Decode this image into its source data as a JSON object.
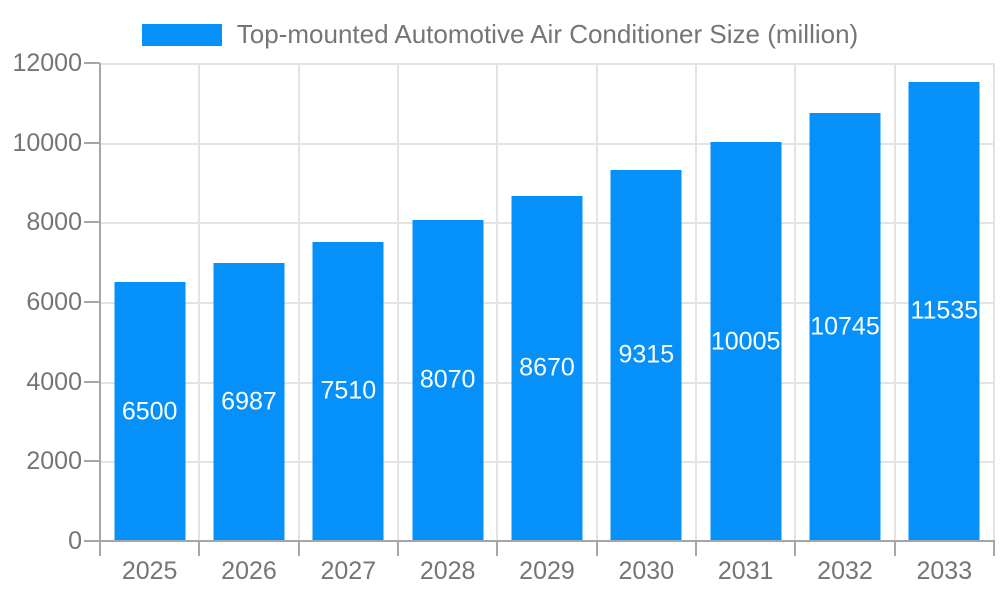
{
  "chart_data": {
    "type": "bar",
    "title": "",
    "legend": "Top-mounted Automotive Air Conditioner Size (million)",
    "legend_position": "top-center",
    "categories": [
      "2025",
      "2026",
      "2027",
      "2028",
      "2029",
      "2030",
      "2031",
      "2032",
      "2033"
    ],
    "values": [
      6500,
      6987,
      7510,
      8070,
      8670,
      9315,
      10005,
      10745,
      11535
    ],
    "xlabel": "",
    "ylabel": "",
    "ylim": [
      0,
      12000
    ],
    "yticks": [
      0,
      2000,
      4000,
      6000,
      8000,
      10000,
      12000
    ],
    "grid": true,
    "bar_value_labels_visible": true,
    "colors": {
      "bar": "#0590fa",
      "grid": "#e3e3e3",
      "axis": "#a6a6a6",
      "tick_text": "#757575",
      "legend_text": "#757575",
      "bar_label_text": "#ffffff",
      "background": "#ffffff"
    }
  }
}
